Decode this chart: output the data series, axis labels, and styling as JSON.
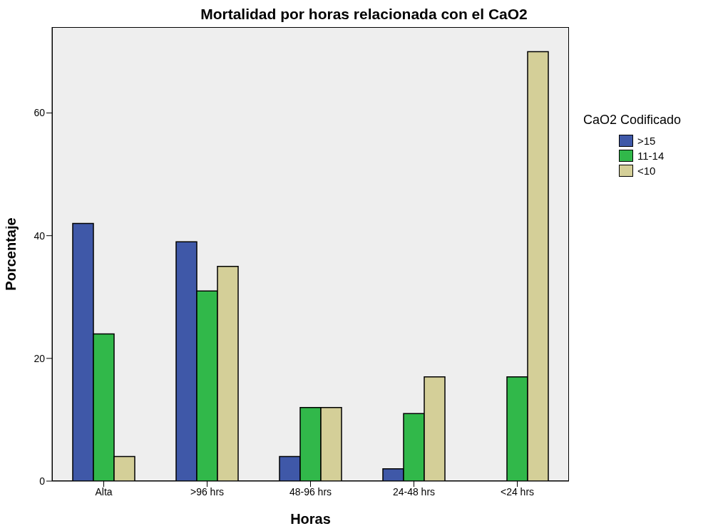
{
  "chart_data": {
    "type": "bar",
    "title": "Mortalidad por horas relacionada con el CaO2",
    "xlabel": "Horas",
    "ylabel": "Porcentaje",
    "legend_title": "CaO2 Codificado",
    "categories": [
      "Alta",
      ">96 hrs",
      "48-96 hrs",
      "24-48 hrs",
      "<24 hrs"
    ],
    "series": [
      {
        "name": ">15",
        "color": "#3f58a8",
        "values": [
          42,
          39,
          4,
          2,
          0
        ]
      },
      {
        "name": "11-14",
        "color": "#31b84a",
        "values": [
          24,
          31,
          12,
          11,
          17
        ]
      },
      {
        "name": "<10",
        "color": "#d4cf98",
        "values": [
          4,
          35,
          12,
          17,
          70
        ]
      }
    ],
    "ylim": [
      0,
      74
    ],
    "yticks": [
      0,
      20,
      40,
      60
    ],
    "grid": false,
    "legend": "right"
  }
}
